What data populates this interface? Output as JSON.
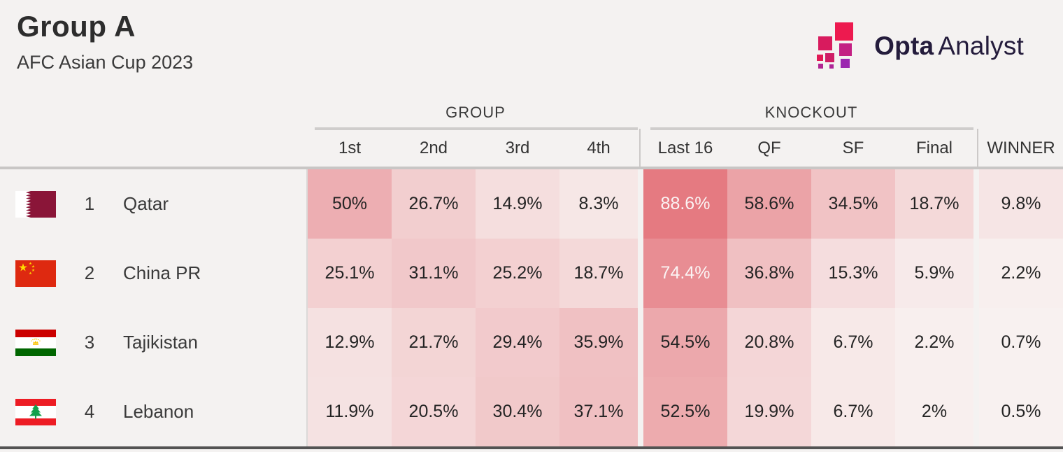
{
  "header": {
    "title": "Group A",
    "subtitle": "AFC Asian Cup 2023"
  },
  "logo": {
    "brand_bold": "Opta",
    "brand_regular": "Analyst",
    "text_color": "#241c3c",
    "square_colors": [
      "#ed1a4f",
      "#d81b5e",
      "#c32083",
      "#cf1d66",
      "#9c27b0",
      "#e11a56",
      "#b12492",
      "#ae2497"
    ]
  },
  "table": {
    "group_headers": [
      {
        "label": "GROUP"
      },
      {
        "label": "KNOCKOUT"
      }
    ],
    "columns": [
      "1st",
      "2nd",
      "3rd",
      "4th",
      "Last 16",
      "QF",
      "SF",
      "Final",
      "WINNER"
    ],
    "rows": [
      {
        "rank": "1",
        "team": "Qatar",
        "flag": "qatar",
        "values": [
          "50%",
          "26.7%",
          "14.9%",
          "8.3%",
          "88.6%",
          "58.6%",
          "34.5%",
          "18.7%",
          "9.8%"
        ]
      },
      {
        "rank": "2",
        "team": "China PR",
        "flag": "china",
        "values": [
          "25.1%",
          "31.1%",
          "25.2%",
          "18.7%",
          "74.4%",
          "36.8%",
          "15.3%",
          "5.9%",
          "2.2%"
        ]
      },
      {
        "rank": "3",
        "team": "Tajikistan",
        "flag": "tajikistan",
        "values": [
          "12.9%",
          "21.7%",
          "29.4%",
          "35.9%",
          "54.5%",
          "20.8%",
          "6.7%",
          "2.2%",
          "0.7%"
        ]
      },
      {
        "rank": "4",
        "team": "Lebanon",
        "flag": "lebanon",
        "values": [
          "11.9%",
          "20.5%",
          "30.4%",
          "37.1%",
          "52.5%",
          "19.9%",
          "6.7%",
          "2%",
          "0.5%"
        ]
      }
    ],
    "heatmap": {
      "zero_color": "#f8f2f1",
      "max_color": "#e4747b",
      "max_value": 93,
      "white_text_threshold": 65
    }
  },
  "chart_data": {
    "type": "heatmap",
    "title": "Group A",
    "subtitle": "AFC Asian Cup 2023",
    "source": "Opta Analyst",
    "column_groups": [
      {
        "label": "GROUP",
        "columns": [
          "1st",
          "2nd",
          "3rd",
          "4th"
        ]
      },
      {
        "label": "KNOCKOUT",
        "columns": [
          "Last 16",
          "QF",
          "SF",
          "Final"
        ]
      },
      {
        "label": "",
        "columns": [
          "WINNER"
        ]
      }
    ],
    "columns": [
      "1st",
      "2nd",
      "3rd",
      "4th",
      "Last 16",
      "QF",
      "SF",
      "Final",
      "WINNER"
    ],
    "rows": [
      "Qatar",
      "China PR",
      "Tajikistan",
      "Lebanon"
    ],
    "values_pct": [
      [
        50,
        26.7,
        14.9,
        8.3,
        88.6,
        58.6,
        34.5,
        18.7,
        9.8
      ],
      [
        25.1,
        31.1,
        25.2,
        18.7,
        74.4,
        36.8,
        15.3,
        5.9,
        2.2
      ],
      [
        12.9,
        21.7,
        29.4,
        35.9,
        54.5,
        20.8,
        6.7,
        2.2,
        0.7
      ],
      [
        11.9,
        20.5,
        30.4,
        37.1,
        52.5,
        19.9,
        6.7,
        2.0,
        0.5
      ]
    ]
  }
}
